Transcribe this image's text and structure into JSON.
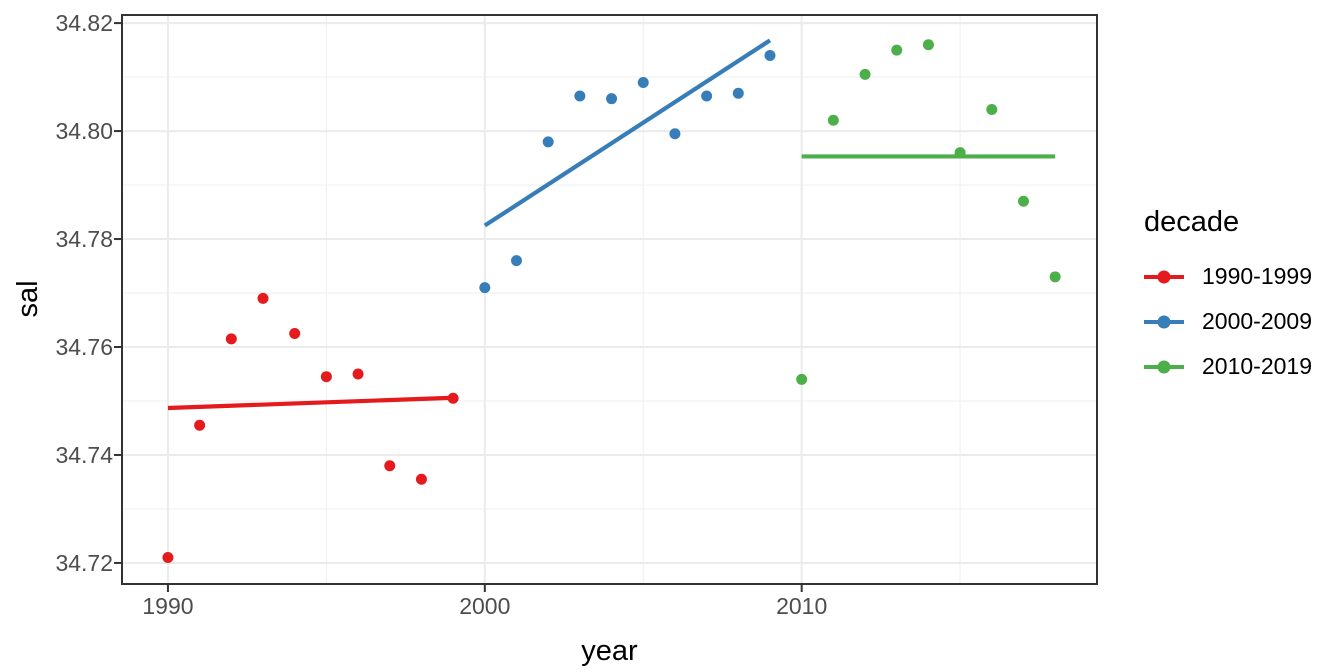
{
  "chart_data": {
    "type": "scatter",
    "title": "",
    "xlabel": "year",
    "ylabel": "sal",
    "grid": true,
    "legend_position": "right",
    "xlim": [
      1988.55,
      2019.32
    ],
    "ylim": [
      34.7161,
      34.8215
    ],
    "x_ticks": {
      "values": [
        1990,
        2000,
        2010
      ],
      "labels": [
        "1990",
        "2000",
        "2010"
      ]
    },
    "x_minor_ticks": [
      1995,
      2005,
      2015
    ],
    "y_ticks": {
      "values": [
        34.72,
        34.74,
        34.76,
        34.78,
        34.8,
        34.82
      ],
      "labels": [
        "34.72",
        "34.74",
        "34.76",
        "34.78",
        "34.80",
        "34.82"
      ]
    },
    "y_minor_ticks": [
      34.73,
      34.75,
      34.77,
      34.79,
      34.81
    ],
    "series": [
      {
        "name": "1990-1999",
        "color": "#E41A1C",
        "points": [
          [
            1990,
            34.721
          ],
          [
            1991,
            34.7455
          ],
          [
            1992,
            34.7615
          ],
          [
            1993,
            34.769
          ],
          [
            1994,
            34.7625
          ],
          [
            1995,
            34.7545
          ],
          [
            1996,
            34.755
          ],
          [
            1997,
            34.738
          ],
          [
            1998,
            34.7355
          ],
          [
            1999,
            34.7505
          ]
        ],
        "trend": [
          [
            1990,
            34.7487
          ],
          [
            1999,
            34.7506
          ]
        ]
      },
      {
        "name": "2000-2009",
        "color": "#377EB8",
        "points": [
          [
            2000,
            34.771
          ],
          [
            2001,
            34.776
          ],
          [
            2002,
            34.798
          ],
          [
            2003,
            34.8065
          ],
          [
            2004,
            34.806
          ],
          [
            2005,
            34.809
          ],
          [
            2006,
            34.7995
          ],
          [
            2007,
            34.8065
          ],
          [
            2008,
            34.807
          ],
          [
            2009,
            34.814
          ]
        ],
        "trend": [
          [
            2000,
            34.7825
          ],
          [
            2009,
            34.8168
          ]
        ]
      },
      {
        "name": "2010-2019",
        "color": "#4DAF4A",
        "points": [
          [
            2010,
            34.754
          ],
          [
            2011,
            34.802
          ],
          [
            2012,
            34.8105
          ],
          [
            2013,
            34.815
          ],
          [
            2014,
            34.816
          ],
          [
            2015,
            34.796
          ],
          [
            2016,
            34.804
          ],
          [
            2017,
            34.787
          ],
          [
            2018,
            34.773
          ]
        ],
        "trend": [
          [
            2010,
            34.7953
          ],
          [
            2018,
            34.7953
          ]
        ]
      }
    ]
  },
  "legend": {
    "title": "decade",
    "items": [
      {
        "label": "1990-1999",
        "color": "#E41A1C"
      },
      {
        "label": "2000-2009",
        "color": "#377EB8"
      },
      {
        "label": "2010-2019",
        "color": "#4DAF4A"
      }
    ]
  },
  "style": {
    "background": "#FFFFFF",
    "panel_border": "#333333",
    "grid_major": "#EBEBEB",
    "grid_minor": "#F1F1F1",
    "tick_color": "#333333",
    "axis_text_color": "#4D4D4D",
    "axis_title_color": "#000000"
  }
}
